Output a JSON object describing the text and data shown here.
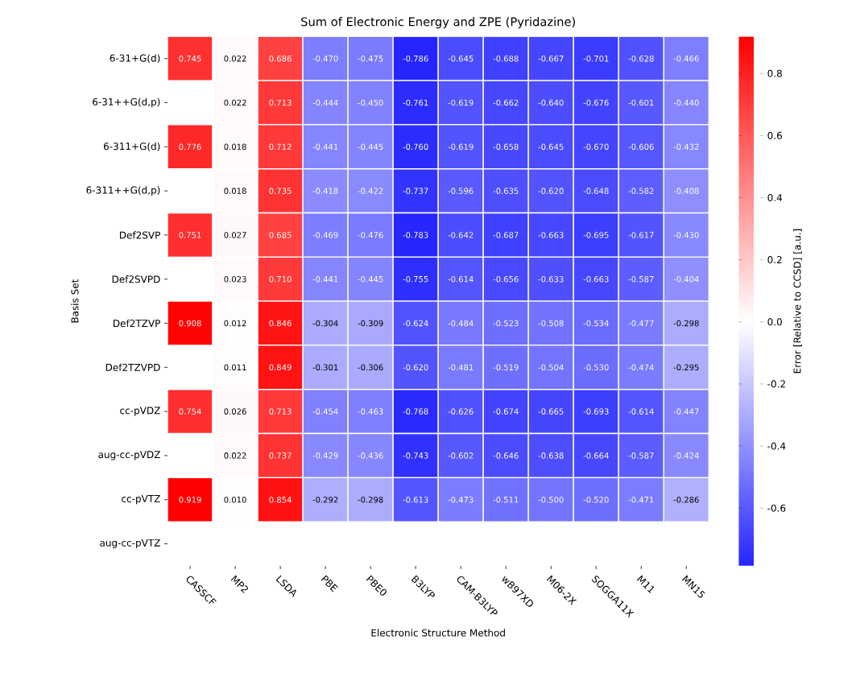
{
  "chart_data": {
    "type": "heatmap",
    "title": "Sum of Electronic Energy and ZPE (Pyridazine)",
    "xlabel": "Electronic Structure Method",
    "ylabel": "Basis Set",
    "clabel": "Error [Relative to CCSD] [a.u.]",
    "categories": [
      "CASSCF",
      "MP2",
      "LSDA",
      "PBE",
      "PBE0",
      "B3LYP",
      "CAM-B3LYP",
      "wB97XD",
      "M06-2X",
      "SOGGA11X",
      "M11",
      "MN15"
    ],
    "y_categories": [
      "6-31+G(d)",
      "6-31++G(d,p)",
      "6-311+G(d)",
      "6-311++G(d,p)",
      "Def2SVP",
      "Def2SVPD",
      "Def2TZVP",
      "Def2TZVPD",
      "cc-pVDZ",
      "aug-cc-pVDZ",
      "cc-pVTZ",
      "aug-cc-pVTZ"
    ],
    "cells": [
      [
        0.745,
        0.022,
        0.686,
        -0.47,
        -0.475,
        -0.786,
        -0.645,
        -0.688,
        -0.667,
        -0.701,
        -0.628,
        -0.466
      ],
      [
        null,
        0.022,
        0.713,
        -0.444,
        -0.45,
        -0.761,
        -0.619,
        -0.662,
        -0.64,
        -0.676,
        -0.601,
        -0.44
      ],
      [
        0.776,
        0.018,
        0.712,
        -0.441,
        -0.445,
        -0.76,
        -0.619,
        -0.658,
        -0.645,
        -0.67,
        -0.606,
        -0.432
      ],
      [
        null,
        0.018,
        0.735,
        -0.418,
        -0.422,
        -0.737,
        -0.596,
        -0.635,
        -0.62,
        -0.648,
        -0.582,
        -0.408
      ],
      [
        0.751,
        0.027,
        0.685,
        -0.469,
        -0.476,
        -0.783,
        -0.642,
        -0.687,
        -0.663,
        -0.695,
        -0.617,
        -0.43
      ],
      [
        null,
        0.023,
        0.71,
        -0.441,
        -0.445,
        -0.755,
        -0.614,
        -0.656,
        -0.633,
        -0.663,
        -0.587,
        -0.404
      ],
      [
        0.908,
        0.012,
        0.846,
        -0.304,
        -0.309,
        -0.624,
        -0.484,
        -0.523,
        -0.508,
        -0.534,
        -0.477,
        -0.298
      ],
      [
        null,
        0.011,
        0.849,
        -0.301,
        -0.306,
        -0.62,
        -0.481,
        -0.519,
        -0.504,
        -0.53,
        -0.474,
        -0.295
      ],
      [
        0.754,
        0.026,
        0.713,
        -0.454,
        -0.463,
        -0.768,
        -0.626,
        -0.674,
        -0.665,
        -0.693,
        -0.614,
        -0.447
      ],
      [
        null,
        0.022,
        0.737,
        -0.429,
        -0.436,
        -0.743,
        -0.602,
        -0.646,
        -0.638,
        -0.664,
        -0.587,
        -0.424
      ],
      [
        0.919,
        0.01,
        0.854,
        -0.292,
        -0.298,
        -0.613,
        -0.473,
        -0.511,
        -0.5,
        -0.52,
        -0.471,
        -0.286
      ],
      [
        null,
        null,
        null,
        null,
        null,
        null,
        null,
        null,
        null,
        null,
        null,
        null
      ]
    ],
    "cell_labels": [
      [
        "0.745",
        "0.022",
        "0.686",
        "-0.470",
        "-0.475",
        "-0.786",
        "-0.645",
        "-0.688",
        "-0.667",
        "-0.701",
        "-0.628",
        "-0.466"
      ],
      [
        null,
        "0.022",
        "0.713",
        "-0.444",
        "-0.450",
        "-0.761",
        "-0.619",
        "-0.662",
        "-0.640",
        "-0.676",
        "-0.601",
        "-0.440"
      ],
      [
        "0.776",
        "0.018",
        "0.712",
        "-0.441",
        "-0.445",
        "-0.760",
        "-0.619",
        "-0.658",
        "-0.645",
        "-0.670",
        "-0.606",
        "-0.432"
      ],
      [
        null,
        "0.018",
        "0.735",
        "-0.418",
        "-0.422",
        "-0.737",
        "-0.596",
        "-0.635",
        "-0.620",
        "-0.648",
        "-0.582",
        "-0.408"
      ],
      [
        "0.751",
        "0.027",
        "0.685",
        "-0.469",
        "-0.476",
        "-0.783",
        "-0.642",
        "-0.687",
        "-0.663",
        "-0.695",
        "-0.617",
        "-0.430"
      ],
      [
        null,
        "0.023",
        "0.710",
        "-0.441",
        "-0.445",
        "-0.755",
        "-0.614",
        "-0.656",
        "-0.633",
        "-0.663",
        "-0.587",
        "-0.404"
      ],
      [
        "0.908",
        "0.012",
        "0.846",
        "-0.304",
        "-0.309",
        "-0.624",
        "-0.484",
        "-0.523",
        "-0.508",
        "-0.534",
        "-0.477",
        "-0.298"
      ],
      [
        null,
        "0.011",
        "0.849",
        "-0.301",
        "-0.306",
        "-0.620",
        "-0.481",
        "-0.519",
        "-0.504",
        "-0.530",
        "-0.474",
        "-0.295"
      ],
      [
        "0.754",
        "0.026",
        "0.713",
        "-0.454",
        "-0.463",
        "-0.768",
        "-0.626",
        "-0.674",
        "-0.665",
        "-0.693",
        "-0.614",
        "-0.447"
      ],
      [
        null,
        "0.022",
        "0.737",
        "-0.429",
        "-0.436",
        "-0.743",
        "-0.602",
        "-0.646",
        "-0.638",
        "-0.664",
        "-0.587",
        "-0.424"
      ],
      [
        "0.919",
        "0.010",
        "0.854",
        "-0.292",
        "-0.298",
        "-0.613",
        "-0.473",
        "-0.511",
        "-0.500",
        "-0.520",
        "-0.471",
        "-0.286"
      ],
      [
        null,
        null,
        null,
        null,
        null,
        null,
        null,
        null,
        null,
        null,
        null,
        null
      ]
    ],
    "clim": [
      -0.786,
      0.919
    ],
    "cticks": [
      -0.6,
      -0.4,
      -0.2,
      {
        "value": 0,
        "label": "0.0"
      },
      0.2,
      0.4,
      0.6,
      0.8
    ]
  }
}
